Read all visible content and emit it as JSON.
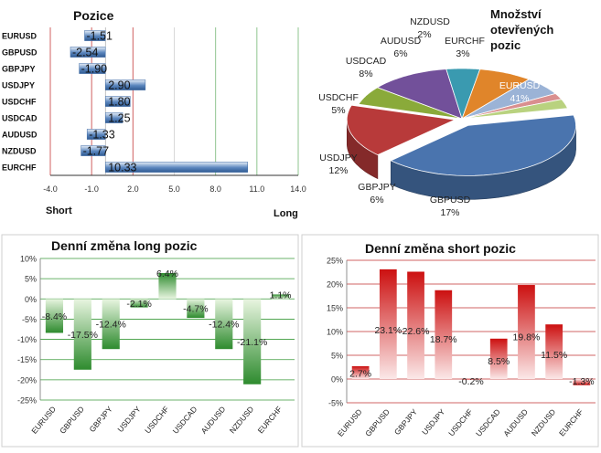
{
  "chart_data": [
    {
      "type": "bar",
      "orientation": "horizontal",
      "title": "Pozice",
      "categories": [
        "EURUSD",
        "GBPUSD",
        "GBPJPY",
        "USDJPY",
        "USDCHF",
        "USDCAD",
        "AUDUSD",
        "NZDUSD",
        "EURCHF"
      ],
      "values": [
        -1.51,
        -2.54,
        -1.9,
        2.9,
        1.8,
        1.25,
        -1.33,
        -1.77,
        10.33
      ],
      "value_labels": [
        "-1.51",
        "-2.54",
        "-1.90",
        "2.90",
        "1.80",
        "1.25",
        "-1.33",
        "-1.77",
        "10.33"
      ],
      "xlim": [
        -4.0,
        14.0
      ],
      "xticks": [
        -4.0,
        -1.0,
        2.0,
        5.0,
        8.0,
        11.0,
        14.0
      ],
      "xtick_labels": [
        "-4.0",
        "-1.0",
        "2.0",
        "5.0",
        "8.0",
        "11.0",
        "14.0"
      ],
      "left_label": "Short",
      "right_label": "Long",
      "colors": {
        "bar": "#5b86be",
        "bar_light": "#e6eef8",
        "grid_red": "#d06060",
        "grid_green": "#8fc48f"
      }
    },
    {
      "type": "pie",
      "title": "Množství otevřených pozic",
      "slices": [
        {
          "label": "EURUSD",
          "value": 41,
          "text": "41%",
          "color": "#4a74ae"
        },
        {
          "label": "GBPUSD",
          "value": 17,
          "text": "17%",
          "color": "#b83a3a"
        },
        {
          "label": "GBPJPY",
          "value": 6,
          "text": "6%",
          "color": "#8aaa3a"
        },
        {
          "label": "USDJPY",
          "value": 12,
          "text": "12%",
          "color": "#72509a"
        },
        {
          "label": "USDCHF",
          "value": 5,
          "text": "5%",
          "color": "#3a9ab0"
        },
        {
          "label": "USDCAD",
          "value": 8,
          "text": "8%",
          "color": "#e0852a"
        },
        {
          "label": "AUDUSD",
          "value": 6,
          "text": "6%",
          "color": "#9bb3d6"
        },
        {
          "label": "NZDUSD",
          "value": 2,
          "text": "2%",
          "color": "#d98f8f"
        },
        {
          "label": "EURCHF",
          "value": 3,
          "text": "3%",
          "color": "#b9d27f"
        }
      ]
    },
    {
      "type": "bar",
      "title": "Denní změna long pozic",
      "categories": [
        "EURUSD",
        "GBPUSD",
        "GBPJPY",
        "USDJPY",
        "USDCHF",
        "USDCAD",
        "AUDUSD",
        "NZDUSD",
        "EURCHF"
      ],
      "values": [
        -8.4,
        -17.5,
        -12.4,
        -2.1,
        6.4,
        -4.7,
        -12.4,
        -21.1,
        1.1
      ],
      "value_labels": [
        "-8.4%",
        "-17.5%",
        "-12.4%",
        "-2.1%",
        "6.4%",
        "-4.7%",
        "-12.4%",
        "-21.1%",
        "1.1%"
      ],
      "ylim": [
        -25,
        10
      ],
      "yticks": [
        -25,
        -20,
        -15,
        -10,
        -5,
        0,
        5,
        10
      ],
      "ytick_labels": [
        "-25%",
        "-20%",
        "-15%",
        "-10%",
        "-5%",
        "0%",
        "5%",
        "10%"
      ],
      "colors": {
        "bar": "#2e8b2e",
        "bar_light": "#e8f5e0",
        "grid": "#3a9a3a"
      }
    },
    {
      "type": "bar",
      "title": "Denní změna short pozic",
      "categories": [
        "EURUSD",
        "GBPUSD",
        "GBPJPY",
        "USDJPY",
        "USDCHF",
        "USDCAD",
        "AUDUSD",
        "NZDUSD",
        "EURCHF"
      ],
      "values": [
        2.7,
        23.1,
        22.6,
        18.7,
        -0.2,
        8.5,
        19.8,
        11.5,
        -1.3
      ],
      "value_labels": [
        "2.7%",
        "23.1%",
        "22.6%",
        "18.7%",
        "-0.2%",
        "8.5%",
        "19.8%",
        "11.5%",
        "-1.3%"
      ],
      "ylim": [
        -5,
        25
      ],
      "yticks": [
        -5,
        0,
        5,
        10,
        15,
        20,
        25
      ],
      "ytick_labels": [
        "-5%",
        "0%",
        "5%",
        "10%",
        "15%",
        "20%",
        "25%"
      ],
      "colors": {
        "bar": "#cc1010",
        "bar_light": "#fbe8e8",
        "grid": "#c03030"
      }
    }
  ]
}
